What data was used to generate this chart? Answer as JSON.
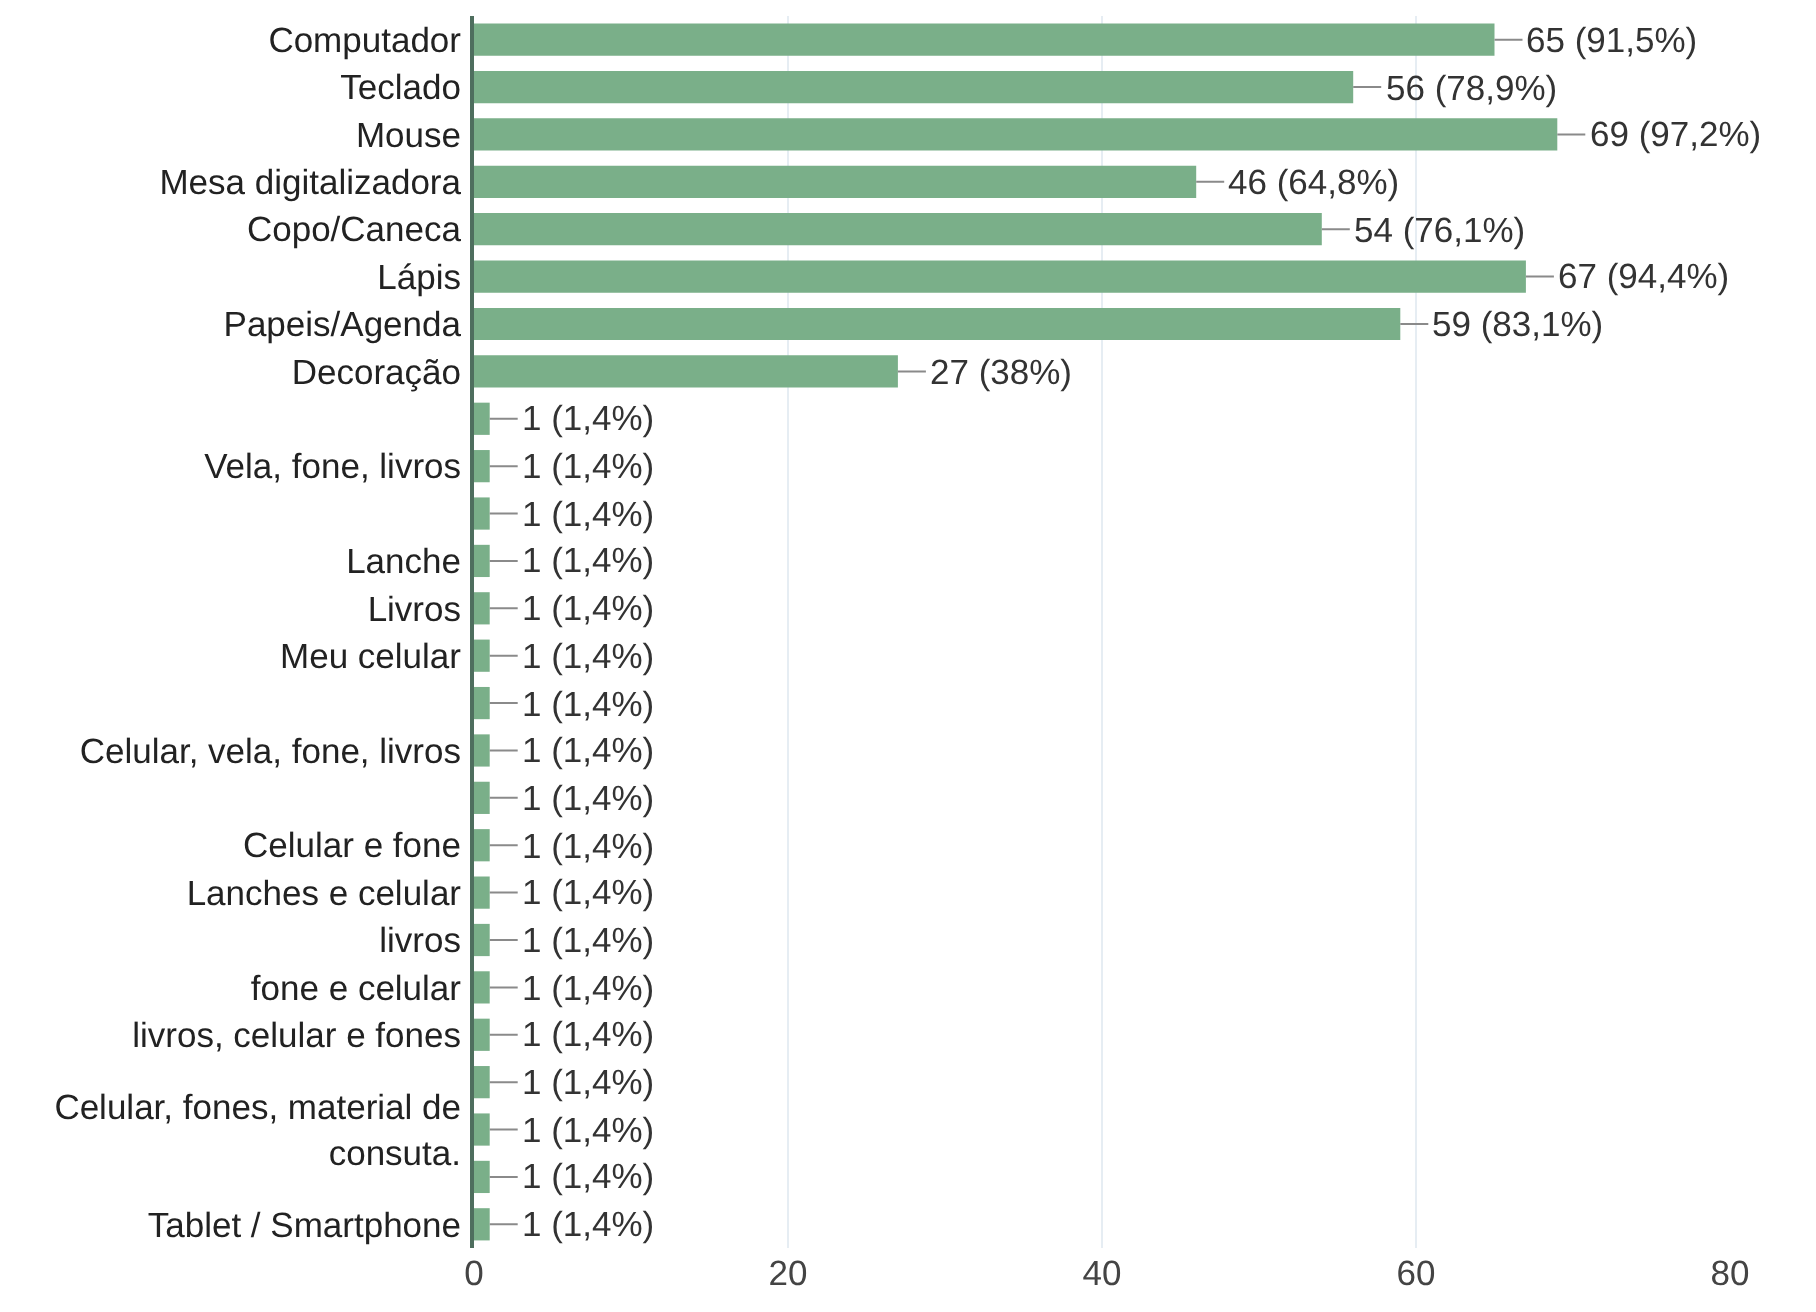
{
  "chart_data": {
    "type": "bar",
    "orientation": "horizontal",
    "categories": [
      "Computador",
      "Teclado",
      "Mouse",
      "Mesa digitalizadora",
      "Copo/Caneca",
      "Lápis",
      "Papeis/Agenda",
      "Decoração",
      null,
      "Vela, fone, livros",
      null,
      "Lanche",
      "Livros",
      "Meu celular",
      null,
      "Celular, vela, fone, livros",
      null,
      "Celular e fone",
      "Lanches e celular",
      "livros",
      "fone e celular",
      "livros, celular e fones",
      null,
      "Celular, fones, material de consuta.",
      null,
      "Tablet / Smartphone"
    ],
    "values": [
      65,
      56,
      69,
      46,
      54,
      67,
      59,
      27,
      1,
      1,
      1,
      1,
      1,
      1,
      1,
      1,
      1,
      1,
      1,
      1,
      1,
      1,
      1,
      1,
      1,
      1
    ],
    "value_labels": [
      "65 (91,5%)",
      "56 (78,9%)",
      "69 (97,2%)",
      "46 (64,8%)",
      "54 (76,1%)",
      "67 (94,4%)",
      "59 (83,1%)",
      "27 (38%)",
      "1 (1,4%)",
      "1 (1,4%)",
      "1 (1,4%)",
      "1 (1,4%)",
      "1 (1,4%)",
      "1 (1,4%)",
      "1 (1,4%)",
      "1 (1,4%)",
      "1 (1,4%)",
      "1 (1,4%)",
      "1 (1,4%)",
      "1 (1,4%)",
      "1 (1,4%)",
      "1 (1,4%)",
      "1 (1,4%)",
      "1 (1,4%)",
      "1 (1,4%)",
      "1 (1,4%)"
    ],
    "color": "#7aaf89",
    "xlim": [
      0,
      80
    ],
    "xticks": [
      0,
      20,
      40,
      60,
      80
    ],
    "grid": "x"
  }
}
